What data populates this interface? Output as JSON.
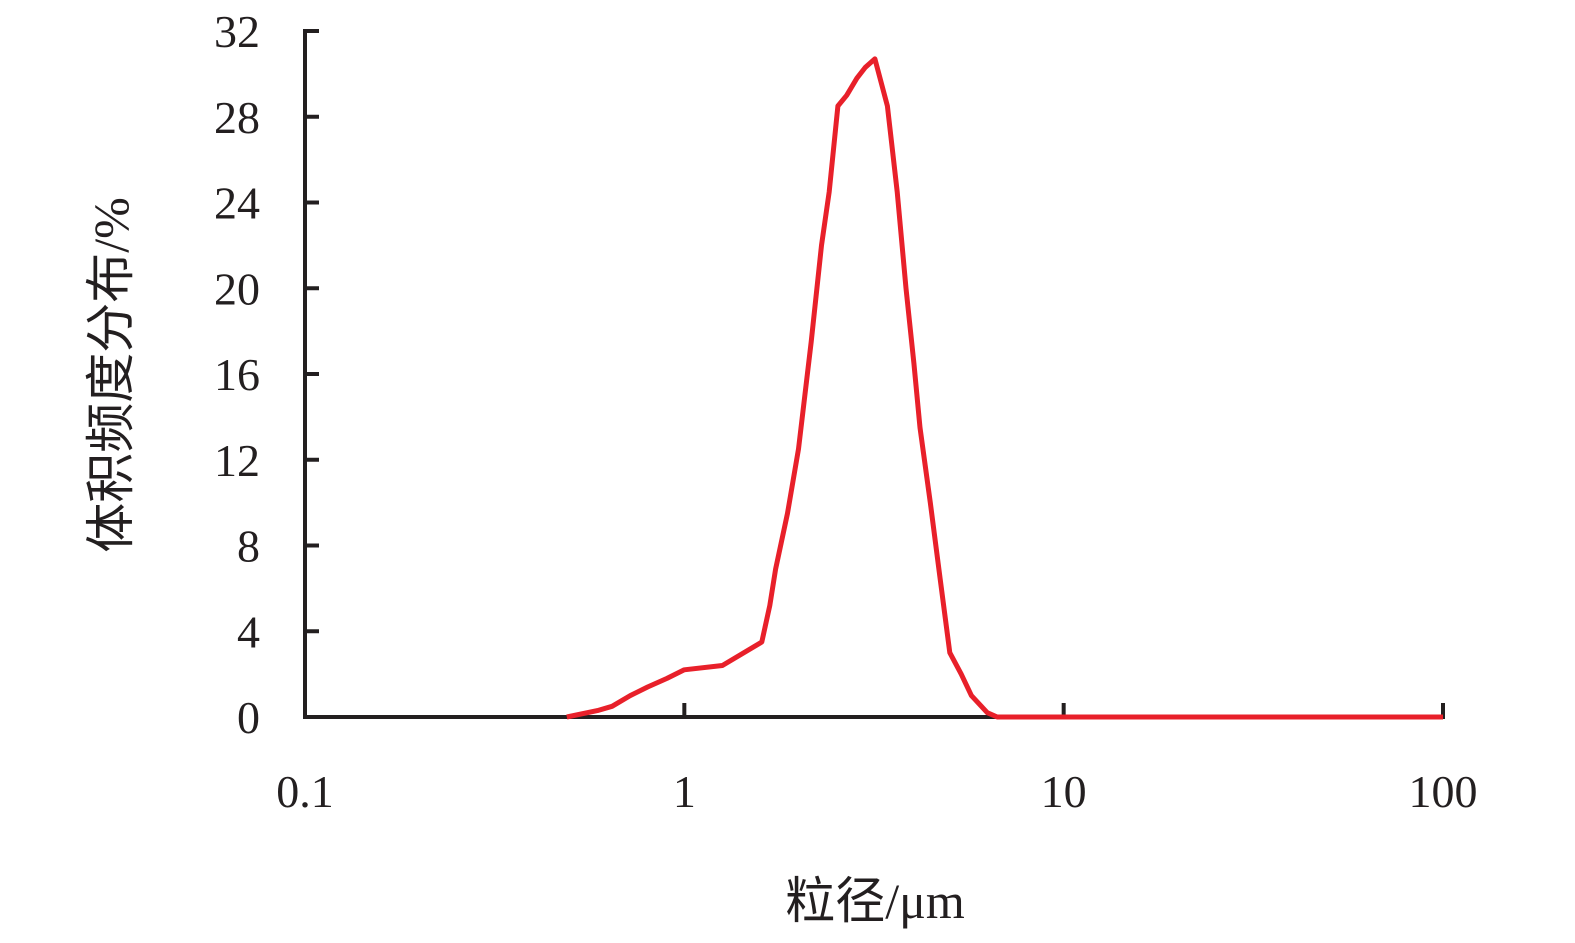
{
  "chart_data": {
    "type": "line",
    "x_label": "粒径/μm",
    "y_label": "体积频度分布/%",
    "x_scale": "log",
    "xlim": [
      0.1,
      100
    ],
    "xticks": [
      0.1,
      1,
      10,
      100
    ],
    "ylim": [
      0,
      32
    ],
    "yticks": [
      0,
      4,
      8,
      12,
      16,
      20,
      24,
      28,
      32
    ],
    "series": [
      {
        "color": "#e8202a",
        "x": [
          0.49,
          0.59,
          0.645,
          0.72,
          0.8,
          0.9,
          1.0,
          1.26,
          1.6,
          1.68,
          1.74,
          1.87,
          2.0,
          2.16,
          2.3,
          2.41,
          2.54,
          2.68,
          2.85,
          3.0,
          3.18,
          3.43,
          3.64,
          3.84,
          4.03,
          4.18,
          4.45,
          4.72,
          5.01,
          5.37,
          5.71,
          6.29,
          6.68,
          10,
          20,
          50,
          100
        ],
        "values": [
          0,
          0.3,
          0.5,
          1.0,
          1.4,
          1.8,
          2.2,
          2.4,
          3.5,
          5.2,
          6.9,
          9.5,
          12.5,
          17.5,
          22,
          24.5,
          28.5,
          29,
          29.8,
          30.3,
          30.7,
          28.5,
          24.5,
          20,
          16.5,
          13.5,
          10,
          6.5,
          3,
          2,
          1,
          0.2,
          0,
          0,
          0,
          0,
          0
        ]
      }
    ]
  }
}
